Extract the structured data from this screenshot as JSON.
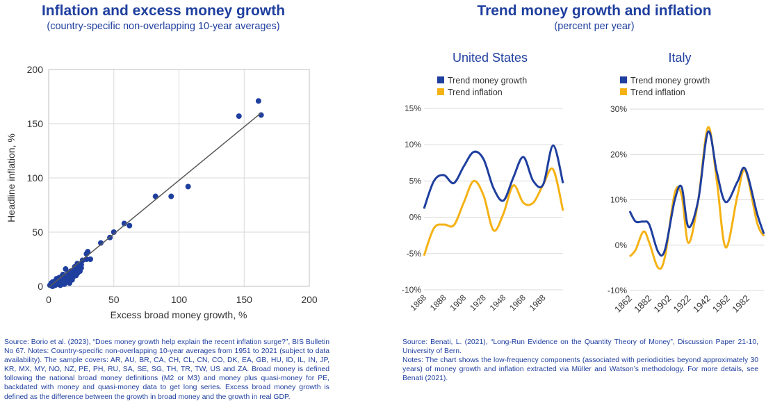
{
  "left": {
    "title": "Inflation and excess money growth",
    "subtitle": "(country-specific non-overlapping 10-year averages)",
    "source_text": "Source: Borio et al. (2023), “Does money growth help explain the recent inflation surge?”, BIS Bulletin No 67. Notes: Country-specific non-overlapping 10-year averages from 1951 to 2021 (subject to data availability). The sample covers: AR, AU, BR, CA, CH, CL, CN, CO, DK, EA, GB, HU, ID, IL, IN, JP, KR, MX, MY, NO, NZ, PE, PH, RU, SA, SE, SG, TH, TR, TW, US and ZA. Broad money is defined following the national broad money definitions (M2 or M3) and money plus quasi-money for PE, backdated with money and quasi-money data to get long series. Excess broad money growth is defined as the difference between the growth in broad money and the growth in real GDP."
  },
  "right": {
    "title": "Trend money growth and inflation",
    "subtitle": "(percent per year)",
    "source_text": "Source: Benati, L. (2021), “Long-Run Evidence on the Quantity Theory of Money”, Discussion Paper 21-10, University of Bern.",
    "notes_text": "Notes: The chart shows the low-frequency components (associated with periodicities beyond approximately 30 years) of money growth and inflation extracted via Müller and Watson’s methodology. For more details, see Benati (2021)."
  },
  "colors": {
    "money": "#1f3f9f",
    "inflation": "#f5b215",
    "fit_line": "#595959",
    "grid": "#d9d9d9"
  },
  "chart_data": [
    {
      "type": "scatter",
      "xlabel": "Excess broad money growth, %",
      "ylabel": "Headline inflation, %",
      "xlim": [
        0,
        200
      ],
      "ylim": [
        0,
        200
      ],
      "xticks": [
        "0",
        "50",
        "100",
        "150",
        "200"
      ],
      "yticks": [
        "0",
        "50",
        "100",
        "150",
        "200"
      ],
      "grid": true,
      "fit_line": {
        "x": [
          0,
          163
        ],
        "y": [
          -1,
          160
        ]
      },
      "points": [
        [
          1,
          1
        ],
        [
          2,
          3
        ],
        [
          3,
          0
        ],
        [
          3,
          4
        ],
        [
          4,
          2
        ],
        [
          5,
          5
        ],
        [
          5,
          1
        ],
        [
          6,
          3
        ],
        [
          6,
          7
        ],
        [
          7,
          2
        ],
        [
          7,
          5
        ],
        [
          8,
          4
        ],
        [
          8,
          8
        ],
        [
          9,
          1
        ],
        [
          9,
          6
        ],
        [
          10,
          3
        ],
        [
          10,
          9
        ],
        [
          11,
          5
        ],
        [
          11,
          11
        ],
        [
          12,
          2
        ],
        [
          12,
          8
        ],
        [
          13,
          6
        ],
        [
          13,
          16
        ],
        [
          14,
          4
        ],
        [
          14,
          10
        ],
        [
          15,
          7
        ],
        [
          15,
          13
        ],
        [
          16,
          9
        ],
        [
          16,
          3
        ],
        [
          17,
          11
        ],
        [
          17,
          14
        ],
        [
          18,
          6
        ],
        [
          18,
          12
        ],
        [
          19,
          9
        ],
        [
          19,
          15
        ],
        [
          20,
          12
        ],
        [
          20,
          18
        ],
        [
          21,
          10
        ],
        [
          21,
          14
        ],
        [
          22,
          21
        ],
        [
          22,
          12
        ],
        [
          23,
          16
        ],
        [
          23,
          19
        ],
        [
          24,
          14
        ],
        [
          24,
          19
        ],
        [
          25,
          17
        ],
        [
          25,
          20
        ],
        [
          26,
          24
        ],
        [
          29,
          30
        ],
        [
          29,
          25
        ],
        [
          30,
          32
        ],
        [
          32,
          25
        ],
        [
          40,
          40
        ],
        [
          47,
          45
        ],
        [
          50,
          50
        ],
        [
          58,
          58
        ],
        [
          62,
          56
        ],
        [
          82,
          83
        ],
        [
          94,
          83
        ],
        [
          107,
          92
        ],
        [
          146,
          157
        ],
        [
          161,
          171
        ],
        [
          163,
          158
        ]
      ]
    },
    {
      "type": "line",
      "panel": "United States",
      "x_start": 1868,
      "x_end": 2008,
      "xticks": [
        "1868",
        "1888",
        "1908",
        "1928",
        "1948",
        "1968",
        "1988"
      ],
      "ylim": [
        -10,
        15
      ],
      "yticks": [
        "-10%",
        "-5%",
        "0%",
        "5%",
        "10%",
        "15%"
      ],
      "series": [
        {
          "name": "Trend money growth",
          "x": [
            1868,
            1878,
            1888,
            1898,
            1908,
            1918,
            1928,
            1938,
            1948,
            1958,
            1968,
            1978,
            1988,
            1998,
            2008
          ],
          "values": [
            1.2,
            5.0,
            5.8,
            4.7,
            7.0,
            9.0,
            8.0,
            4.0,
            2.3,
            5.5,
            8.3,
            5.0,
            4.5,
            9.9,
            4.7
          ]
        },
        {
          "name": "Trend inflation",
          "x": [
            1868,
            1878,
            1888,
            1898,
            1908,
            1918,
            1928,
            1938,
            1948,
            1958,
            1968,
            1978,
            1988,
            1998,
            2008
          ],
          "values": [
            -5.3,
            -1.5,
            -1.0,
            -1.1,
            2.0,
            5.0,
            3.0,
            -1.8,
            0.5,
            4.4,
            2.0,
            2.0,
            4.5,
            6.6,
            0.9
          ]
        }
      ]
    },
    {
      "type": "line",
      "panel": "Italy",
      "x_start": 1862,
      "x_end": 1999,
      "xticks": [
        "1862",
        "1882",
        "1902",
        "1922",
        "1942",
        "1962",
        "1982"
      ],
      "ylim": [
        -10,
        30
      ],
      "yticks": [
        "-10%",
        "0%",
        "10%",
        "20%",
        "30%"
      ],
      "series": [
        {
          "name": "Trend money growth",
          "x": [
            1862,
            1868,
            1876,
            1882,
            1891,
            1898,
            1908,
            1915,
            1922,
            1932,
            1942,
            1951,
            1960,
            1972,
            1980,
            1992,
            1999
          ],
          "values": [
            7.5,
            5.2,
            5.2,
            4.5,
            -1.5,
            -1.0,
            10.0,
            12.8,
            4.0,
            10.0,
            25.0,
            16.0,
            9.5,
            14.0,
            16.8,
            7.0,
            2.5
          ]
        },
        {
          "name": "Trend inflation",
          "x": [
            1862,
            1868,
            1876,
            1882,
            1891,
            1898,
            1908,
            1915,
            1922,
            1932,
            1942,
            1951,
            1960,
            1972,
            1980,
            1992,
            1999
          ],
          "values": [
            -2.5,
            -1.0,
            3.0,
            0.5,
            -5.0,
            -2.5,
            11.5,
            11.0,
            0.5,
            10.0,
            26.0,
            14.0,
            -0.5,
            11.0,
            16.5,
            5.0,
            2.0
          ]
        }
      ]
    }
  ]
}
